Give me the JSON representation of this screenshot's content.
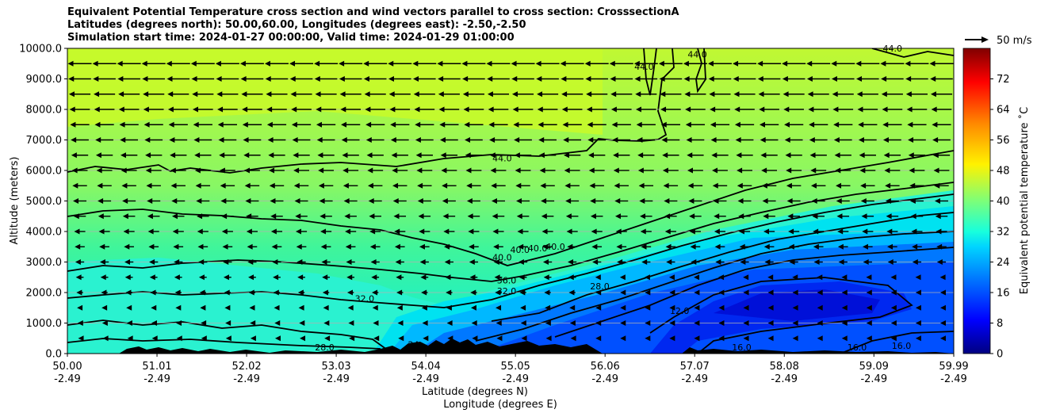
{
  "chart_data": {
    "type": "filled-contour",
    "title_lines": [
      "Equivalent Potential Temperature cross section and wind vectors parallel to cross section: CrosssectionA",
      "Latitudes (degrees north): 50.00,60.00, Longitudes (degrees east): -2.50,-2.50",
      "Simulation start time: 2024-01-27 00:00:00, Valid time: 2024-01-29 01:00:00"
    ],
    "ylabel": "Altitude (meters)",
    "xlabel_lines": [
      "Latitude (degrees N)",
      "Longitude (degrees E)"
    ],
    "ylim": [
      0,
      10000
    ],
    "y_ticks": [
      0,
      1000,
      2000,
      3000,
      4000,
      5000,
      6000,
      7000,
      8000,
      9000,
      10000
    ],
    "y_tick_labels": [
      "0.0",
      "1000.0",
      "2000.0",
      "3000.0",
      "4000.0",
      "5000.0",
      "6000.0",
      "7000.0",
      "8000.0",
      "9000.0",
      "10000.0"
    ],
    "xlim": [
      50.0,
      59.99
    ],
    "x_ticks": [
      50.0,
      51.01,
      52.02,
      53.03,
      54.04,
      55.05,
      56.06,
      57.07,
      58.08,
      59.09,
      59.99
    ],
    "x_tick_labels_lat": [
      "50.00",
      "51.01",
      "52.02",
      "53.03",
      "54.04",
      "55.05",
      "56.06",
      "57.07",
      "58.08",
      "59.09",
      "59.99"
    ],
    "x_tick_labels_lon": [
      "-2.49",
      "-2.49",
      "-2.49",
      "-2.49",
      "-2.49",
      "-2.49",
      "-2.49",
      "-2.49",
      "-2.49",
      "-2.49",
      "-2.49"
    ],
    "grid": "horizontal",
    "colorbar": {
      "label": "Equivalent potential temperature ˚C",
      "range": [
        0,
        80
      ],
      "ticks": [
        0,
        8,
        16,
        24,
        32,
        40,
        48,
        56,
        64,
        72
      ],
      "colormap": "jet"
    },
    "quiver_key": {
      "label": "50 m/s",
      "value": 50
    },
    "contour_labels": [
      {
        "text": "44.0",
        "lat": 54.9,
        "alt": 6300
      },
      {
        "text": "44.0",
        "lat": 56.5,
        "alt": 9300
      },
      {
        "text": "44.0",
        "lat": 57.1,
        "alt": 9700
      },
      {
        "text": "44.0",
        "lat": 59.3,
        "alt": 9900
      },
      {
        "text": "40.0",
        "lat": 54.9,
        "alt": 3050
      },
      {
        "text": "40.0",
        "lat": 55.1,
        "alt": 3300
      },
      {
        "text": "40.0",
        "lat": 55.3,
        "alt": 3350
      },
      {
        "text": "40.0",
        "lat": 55.5,
        "alt": 3400
      },
      {
        "text": "36.0",
        "lat": 54.95,
        "alt": 2300
      },
      {
        "text": "32.0",
        "lat": 54.95,
        "alt": 1950
      },
      {
        "text": "32.0",
        "lat": 53.35,
        "alt": 1700
      },
      {
        "text": "28.0",
        "lat": 56.0,
        "alt": 2100
      },
      {
        "text": "28.0",
        "lat": 52.9,
        "alt": 100
      },
      {
        "text": "24",
        "lat": 53.9,
        "alt": 200
      },
      {
        "text": "12.0",
        "lat": 56.9,
        "alt": 1300
      },
      {
        "text": "16.0",
        "lat": 57.6,
        "alt": 100
      },
      {
        "text": "16.0",
        "lat": 58.9,
        "alt": 100
      },
      {
        "text": "16.0",
        "lat": 59.4,
        "alt": 150
      }
    ]
  }
}
